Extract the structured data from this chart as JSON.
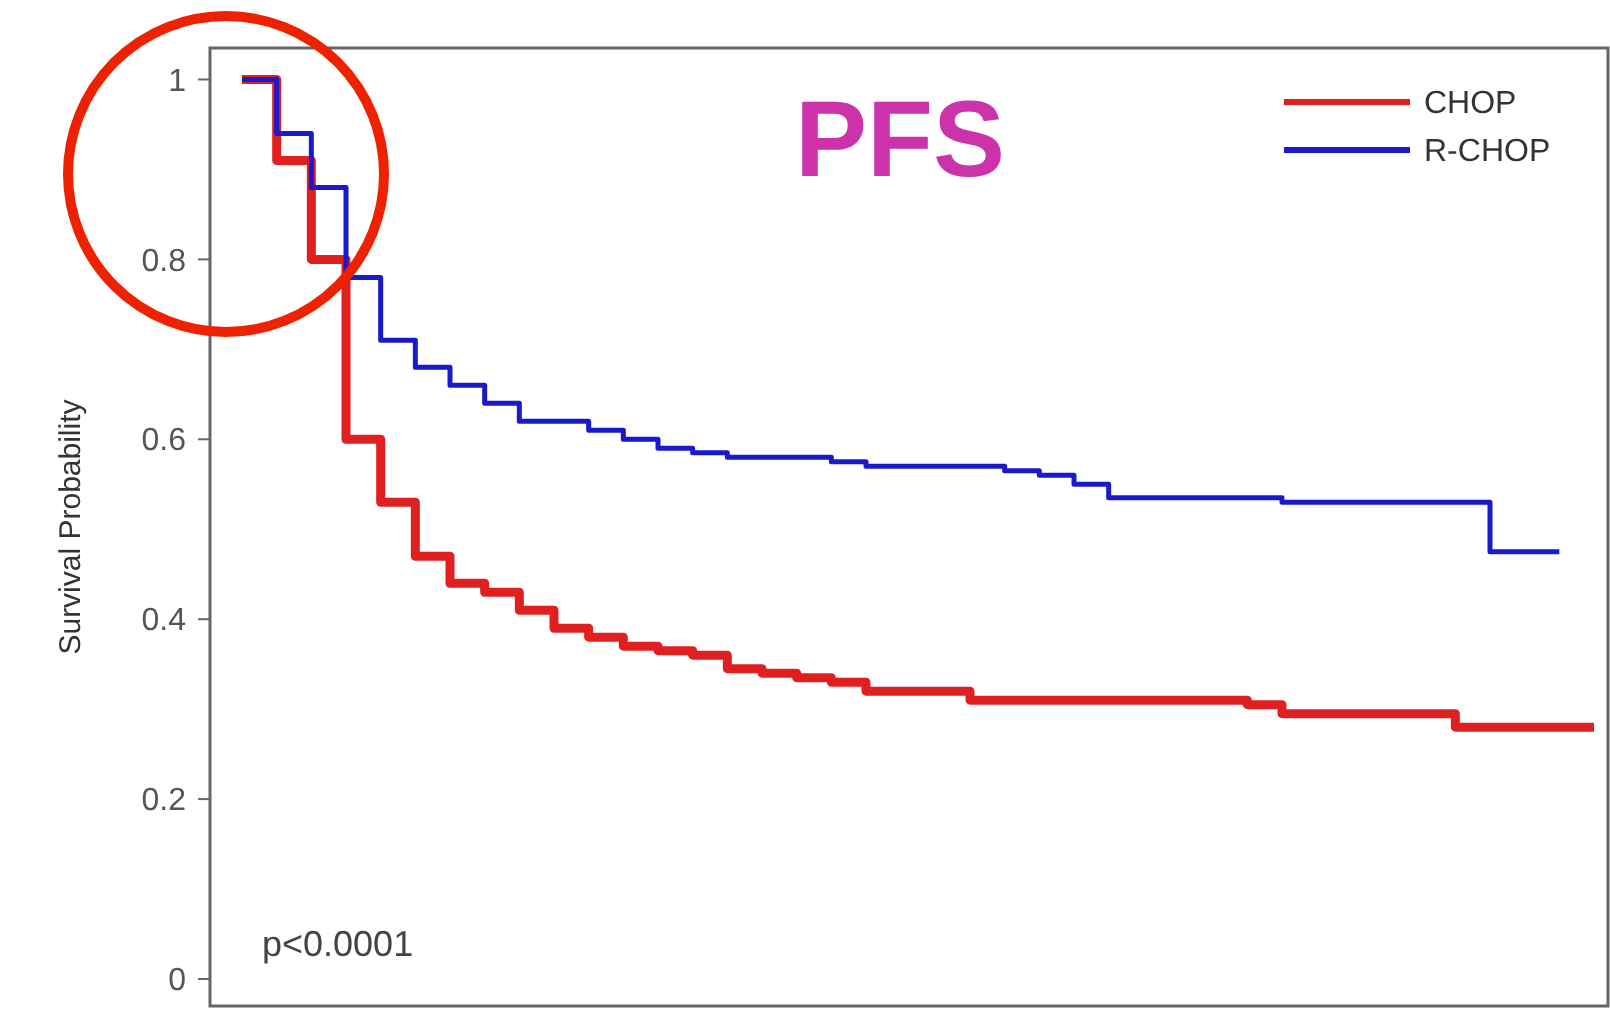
{
  "chart_data": {
    "type": "step",
    "title": "PFS",
    "ylabel": "Survival Probability",
    "annotations": [
      "p<0.0001"
    ],
    "categories": [
      null,
      null,
      null,
      null,
      null,
      null,
      null,
      null,
      null,
      null,
      null,
      null,
      null,
      null,
      null,
      null,
      null,
      null,
      null,
      null,
      null,
      null,
      null,
      null,
      null,
      null,
      null,
      null,
      null,
      null,
      null,
      null,
      null,
      null,
      null,
      null,
      null,
      null,
      null,
      null
    ],
    "series": [
      {
        "name": "CHOP",
        "color": "#e02020",
        "values": [
          1.0,
          0.91,
          0.8,
          0.6,
          0.53,
          0.47,
          0.44,
          0.43,
          0.41,
          0.39,
          0.38,
          0.37,
          0.365,
          0.36,
          0.345,
          0.34,
          0.335,
          0.33,
          0.32,
          0.32,
          0.32,
          0.31,
          0.31,
          0.31,
          0.31,
          0.31,
          0.31,
          0.31,
          0.31,
          0.305,
          0.295,
          0.295,
          0.295,
          0.295,
          0.295,
          0.28,
          0.28,
          0.28,
          0.28,
          0.28
        ]
      },
      {
        "name": "R-CHOP",
        "color": "#1a1acc",
        "values": [
          1.0,
          0.94,
          0.88,
          0.78,
          0.71,
          0.68,
          0.66,
          0.64,
          0.62,
          0.62,
          0.61,
          0.6,
          0.59,
          0.585,
          0.58,
          0.58,
          0.58,
          0.575,
          0.57,
          0.57,
          0.57,
          0.57,
          0.565,
          0.56,
          0.55,
          0.535,
          0.535,
          0.535,
          0.535,
          0.535,
          0.53,
          0.53,
          0.53,
          0.53,
          0.53,
          0.53,
          0.475,
          0.475,
          0.475,
          null
        ]
      }
    ],
    "ylim": [
      -0.03,
      1.035
    ],
    "yticks": [
      0,
      0.2,
      0.4,
      0.6,
      0.8,
      1
    ],
    "tick_labels": "y",
    "legend": "top right"
  }
}
